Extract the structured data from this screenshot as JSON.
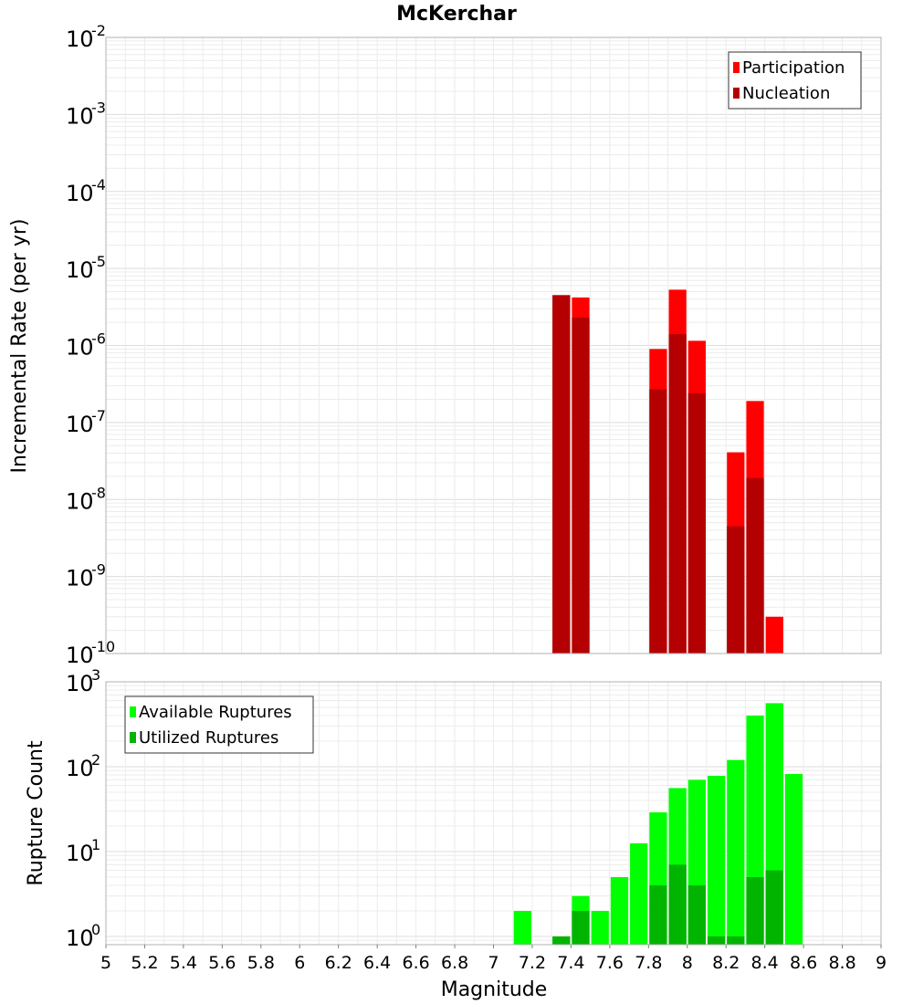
{
  "chart_data": [
    {
      "type": "bar",
      "title": "McKerchar",
      "ylabel": "Incremental Rate (per yr)",
      "xlabel": "",
      "yscale": "log",
      "ylim": [
        1e-10,
        0.01
      ],
      "xlim": [
        5,
        9
      ],
      "bar_width": 0.1,
      "y_ticks": [
        {
          "base": "10",
          "exp": "-10",
          "value": 1e-10
        },
        {
          "base": "10",
          "exp": "-9",
          "value": 1e-09
        },
        {
          "base": "10",
          "exp": "-8",
          "value": 1e-08
        },
        {
          "base": "10",
          "exp": "-7",
          "value": 1e-07
        },
        {
          "base": "10",
          "exp": "-6",
          "value": 1e-06
        },
        {
          "base": "10",
          "exp": "-5",
          "value": 1e-05
        },
        {
          "base": "10",
          "exp": "-4",
          "value": 0.0001
        },
        {
          "base": "10",
          "exp": "-3",
          "value": 0.001
        },
        {
          "base": "10",
          "exp": "-2",
          "value": 0.01
        }
      ],
      "legend": {
        "placement": "top-right",
        "entries": [
          {
            "label": "Participation",
            "color": "#ff0000"
          },
          {
            "label": "Nucleation",
            "color": "#b40000"
          }
        ]
      },
      "grid": true,
      "series": [
        {
          "name": "Participation",
          "color": "#ff0000",
          "points": [
            {
              "x": 7.35,
              "y": 4.5e-06
            },
            {
              "x": 7.45,
              "y": 4.2e-06
            },
            {
              "x": 7.85,
              "y": 9e-07
            },
            {
              "x": 7.95,
              "y": 5.3e-06
            },
            {
              "x": 8.05,
              "y": 1.15e-06
            },
            {
              "x": 8.25,
              "y": 4.1e-08
            },
            {
              "x": 8.35,
              "y": 1.9e-07
            },
            {
              "x": 8.45,
              "y": 3e-10
            }
          ]
        },
        {
          "name": "Nucleation",
          "color": "#b40000",
          "points": [
            {
              "x": 7.35,
              "y": 4.5e-06
            },
            {
              "x": 7.45,
              "y": 2.3e-06
            },
            {
              "x": 7.85,
              "y": 2.7e-07
            },
            {
              "x": 7.95,
              "y": 1.4e-06
            },
            {
              "x": 8.05,
              "y": 2.4e-07
            },
            {
              "x": 8.25,
              "y": 4.5e-09
            },
            {
              "x": 8.35,
              "y": 1.9e-08
            }
          ]
        }
      ]
    },
    {
      "type": "bar",
      "title": "",
      "ylabel": "Rupture Count",
      "xlabel": "Magnitude",
      "yscale": "log",
      "ylim": [
        0.8,
        1000
      ],
      "xlim": [
        5,
        9
      ],
      "bar_width": 0.1,
      "x_tick_labels": [
        "5",
        "5.2",
        "5.4",
        "5.6",
        "5.8",
        "6",
        "6.2",
        "6.4",
        "6.6",
        "6.8",
        "7",
        "7.2",
        "7.4",
        "7.6",
        "7.8",
        "8",
        "8.2",
        "8.4",
        "8.6",
        "8.8",
        "9"
      ],
      "x_tick_values": [
        5,
        5.2,
        5.4,
        5.6,
        5.8,
        6,
        6.2,
        6.4,
        6.6,
        6.8,
        7,
        7.2,
        7.4,
        7.6,
        7.8,
        8,
        8.2,
        8.4,
        8.6,
        8.8,
        9
      ],
      "y_ticks": [
        {
          "base": "10",
          "exp": "0",
          "value": 1
        },
        {
          "base": "10",
          "exp": "1",
          "value": 10
        },
        {
          "base": "10",
          "exp": "2",
          "value": 100
        },
        {
          "base": "10",
          "exp": "3",
          "value": 1000
        }
      ],
      "legend": {
        "placement": "top-left",
        "entries": [
          {
            "label": "Available Ruptures",
            "color": "#00ff00"
          },
          {
            "label": "Utilized Ruptures",
            "color": "#00b400"
          }
        ]
      },
      "grid": true,
      "series": [
        {
          "name": "Available Ruptures",
          "color": "#00ff00",
          "points": [
            {
              "x": 7.15,
              "y": 2
            },
            {
              "x": 7.35,
              "y": 1
            },
            {
              "x": 7.45,
              "y": 3
            },
            {
              "x": 7.55,
              "y": 2
            },
            {
              "x": 7.65,
              "y": 5
            },
            {
              "x": 7.75,
              "y": 12.5
            },
            {
              "x": 7.85,
              "y": 29
            },
            {
              "x": 7.95,
              "y": 56
            },
            {
              "x": 8.05,
              "y": 70
            },
            {
              "x": 8.15,
              "y": 78
            },
            {
              "x": 8.25,
              "y": 120
            },
            {
              "x": 8.35,
              "y": 400
            },
            {
              "x": 8.45,
              "y": 560
            },
            {
              "x": 8.55,
              "y": 82
            }
          ]
        },
        {
          "name": "Utilized Ruptures",
          "color": "#00b400",
          "points": [
            {
              "x": 7.35,
              "y": 1
            },
            {
              "x": 7.45,
              "y": 2
            },
            {
              "x": 7.85,
              "y": 4
            },
            {
              "x": 7.95,
              "y": 7
            },
            {
              "x": 8.05,
              "y": 4
            },
            {
              "x": 8.15,
              "y": 1
            },
            {
              "x": 8.25,
              "y": 1
            },
            {
              "x": 8.35,
              "y": 5
            },
            {
              "x": 8.45,
              "y": 6
            }
          ]
        }
      ]
    }
  ]
}
